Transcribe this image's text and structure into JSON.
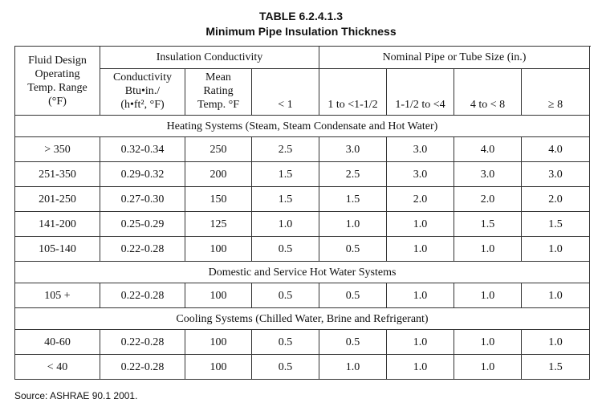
{
  "header": {
    "title": "TABLE 6.2.4.1.3",
    "subtitle": "Minimum Pipe Insulation Thickness"
  },
  "table": {
    "group_headers": {
      "range": [
        "Fluid Design",
        "Operating",
        "Temp. Range",
        "(°F)"
      ],
      "conductivity": "Insulation Conductivity",
      "pipe_size": "Nominal Pipe or Tube Size (in.)"
    },
    "sub_headers": [
      [
        "Conductivity",
        "Btu•in./",
        "(h•ft², °F)"
      ],
      [
        "Mean",
        "Rating",
        "Temp. °F"
      ],
      [
        "< 1"
      ],
      [
        "1 to <1-1/2"
      ],
      [
        "1-1/2 to <4"
      ],
      [
        "4 to < 8"
      ],
      [
        "≥ 8"
      ]
    ],
    "sections": [
      {
        "title": "Heating Systems (Steam, Steam Condensate and Hot Water)",
        "rows": [
          [
            "> 350",
            "0.32-0.34",
            "250",
            "2.5",
            "3.0",
            "3.0",
            "4.0",
            "4.0"
          ],
          [
            "251-350",
            "0.29-0.32",
            "200",
            "1.5",
            "2.5",
            "3.0",
            "3.0",
            "3.0"
          ],
          [
            "201-250",
            "0.27-0.30",
            "150",
            "1.5",
            "1.5",
            "2.0",
            "2.0",
            "2.0"
          ],
          [
            "141-200",
            "0.25-0.29",
            "125",
            "1.0",
            "1.0",
            "1.0",
            "1.5",
            "1.5"
          ],
          [
            "105-140",
            "0.22-0.28",
            "100",
            "0.5",
            "0.5",
            "1.0",
            "1.0",
            "1.0"
          ]
        ]
      },
      {
        "title": "Domestic and Service Hot Water Systems",
        "rows": [
          [
            "105 +",
            "0.22-0.28",
            "100",
            "0.5",
            "0.5",
            "1.0",
            "1.0",
            "1.0"
          ]
        ]
      },
      {
        "title": "Cooling Systems (Chilled Water, Brine and Refrigerant)",
        "rows": [
          [
            "40-60",
            "0.22-0.28",
            "100",
            "0.5",
            "0.5",
            "1.0",
            "1.0",
            "1.0"
          ],
          [
            "< 40",
            "0.22-0.28",
            "100",
            "0.5",
            "1.0",
            "1.0",
            "1.0",
            "1.5"
          ]
        ]
      }
    ]
  },
  "footer": {
    "source": "Source: ASHRAE 90.1 2001."
  }
}
